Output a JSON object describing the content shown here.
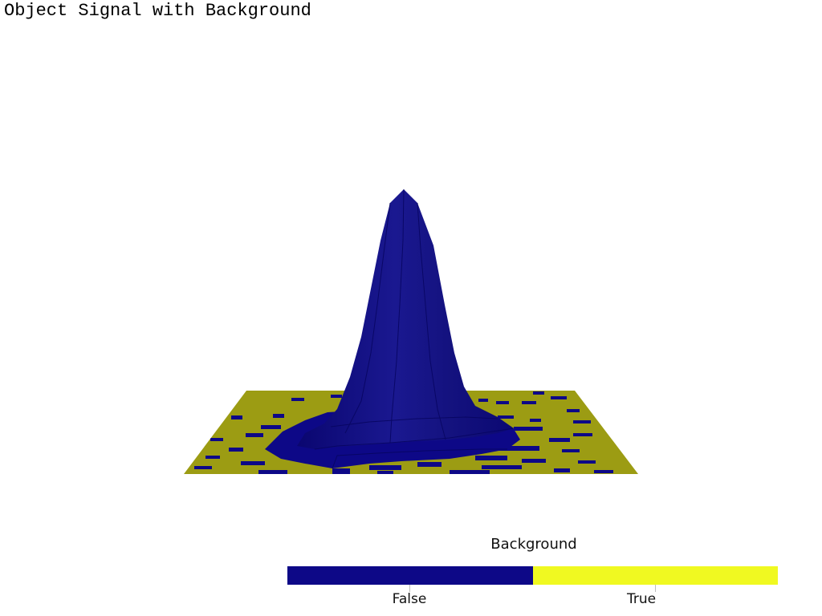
{
  "title": "Object Signal with Background",
  "colorbar": {
    "title": "Background",
    "categories": [
      {
        "label": "False",
        "color": "#0d0887"
      },
      {
        "label": "True",
        "color": "#f0f921"
      }
    ]
  },
  "scene": {
    "surface_color": "#0d0887",
    "plane_color": "#9c9c13"
  }
}
